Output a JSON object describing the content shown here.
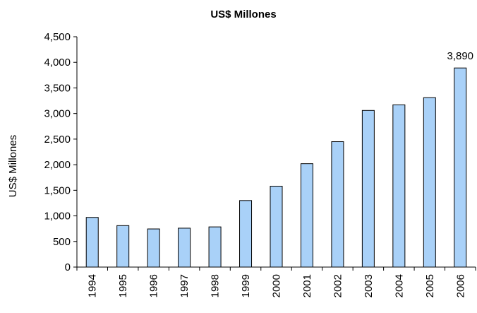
{
  "chart_data": {
    "type": "bar",
    "title": "US$ Millones",
    "ylabel": "US$ Millones",
    "xlabel": "",
    "categories": [
      "1994",
      "1995",
      "1996",
      "1997",
      "1998",
      "1999",
      "2000",
      "2001",
      "2002",
      "2003",
      "2004",
      "2005",
      "2006"
    ],
    "values": [
      970,
      810,
      745,
      760,
      785,
      1300,
      1580,
      2020,
      2450,
      3060,
      3170,
      3310,
      3890
    ],
    "ylim": [
      0,
      4500
    ],
    "yticks": [
      0,
      500,
      1000,
      1500,
      2000,
      2500,
      3000,
      3500,
      4000,
      4500
    ],
    "ytick_labels": [
      "0",
      "500",
      "1,000",
      "1,500",
      "2,000",
      "2,500",
      "3,000",
      "3,500",
      "4,000",
      "4,500"
    ],
    "data_labels": [
      {
        "category": "2006",
        "text": "3,890"
      }
    ],
    "grid": false,
    "legend": "none",
    "bar_color": "#a9d1f8"
  }
}
